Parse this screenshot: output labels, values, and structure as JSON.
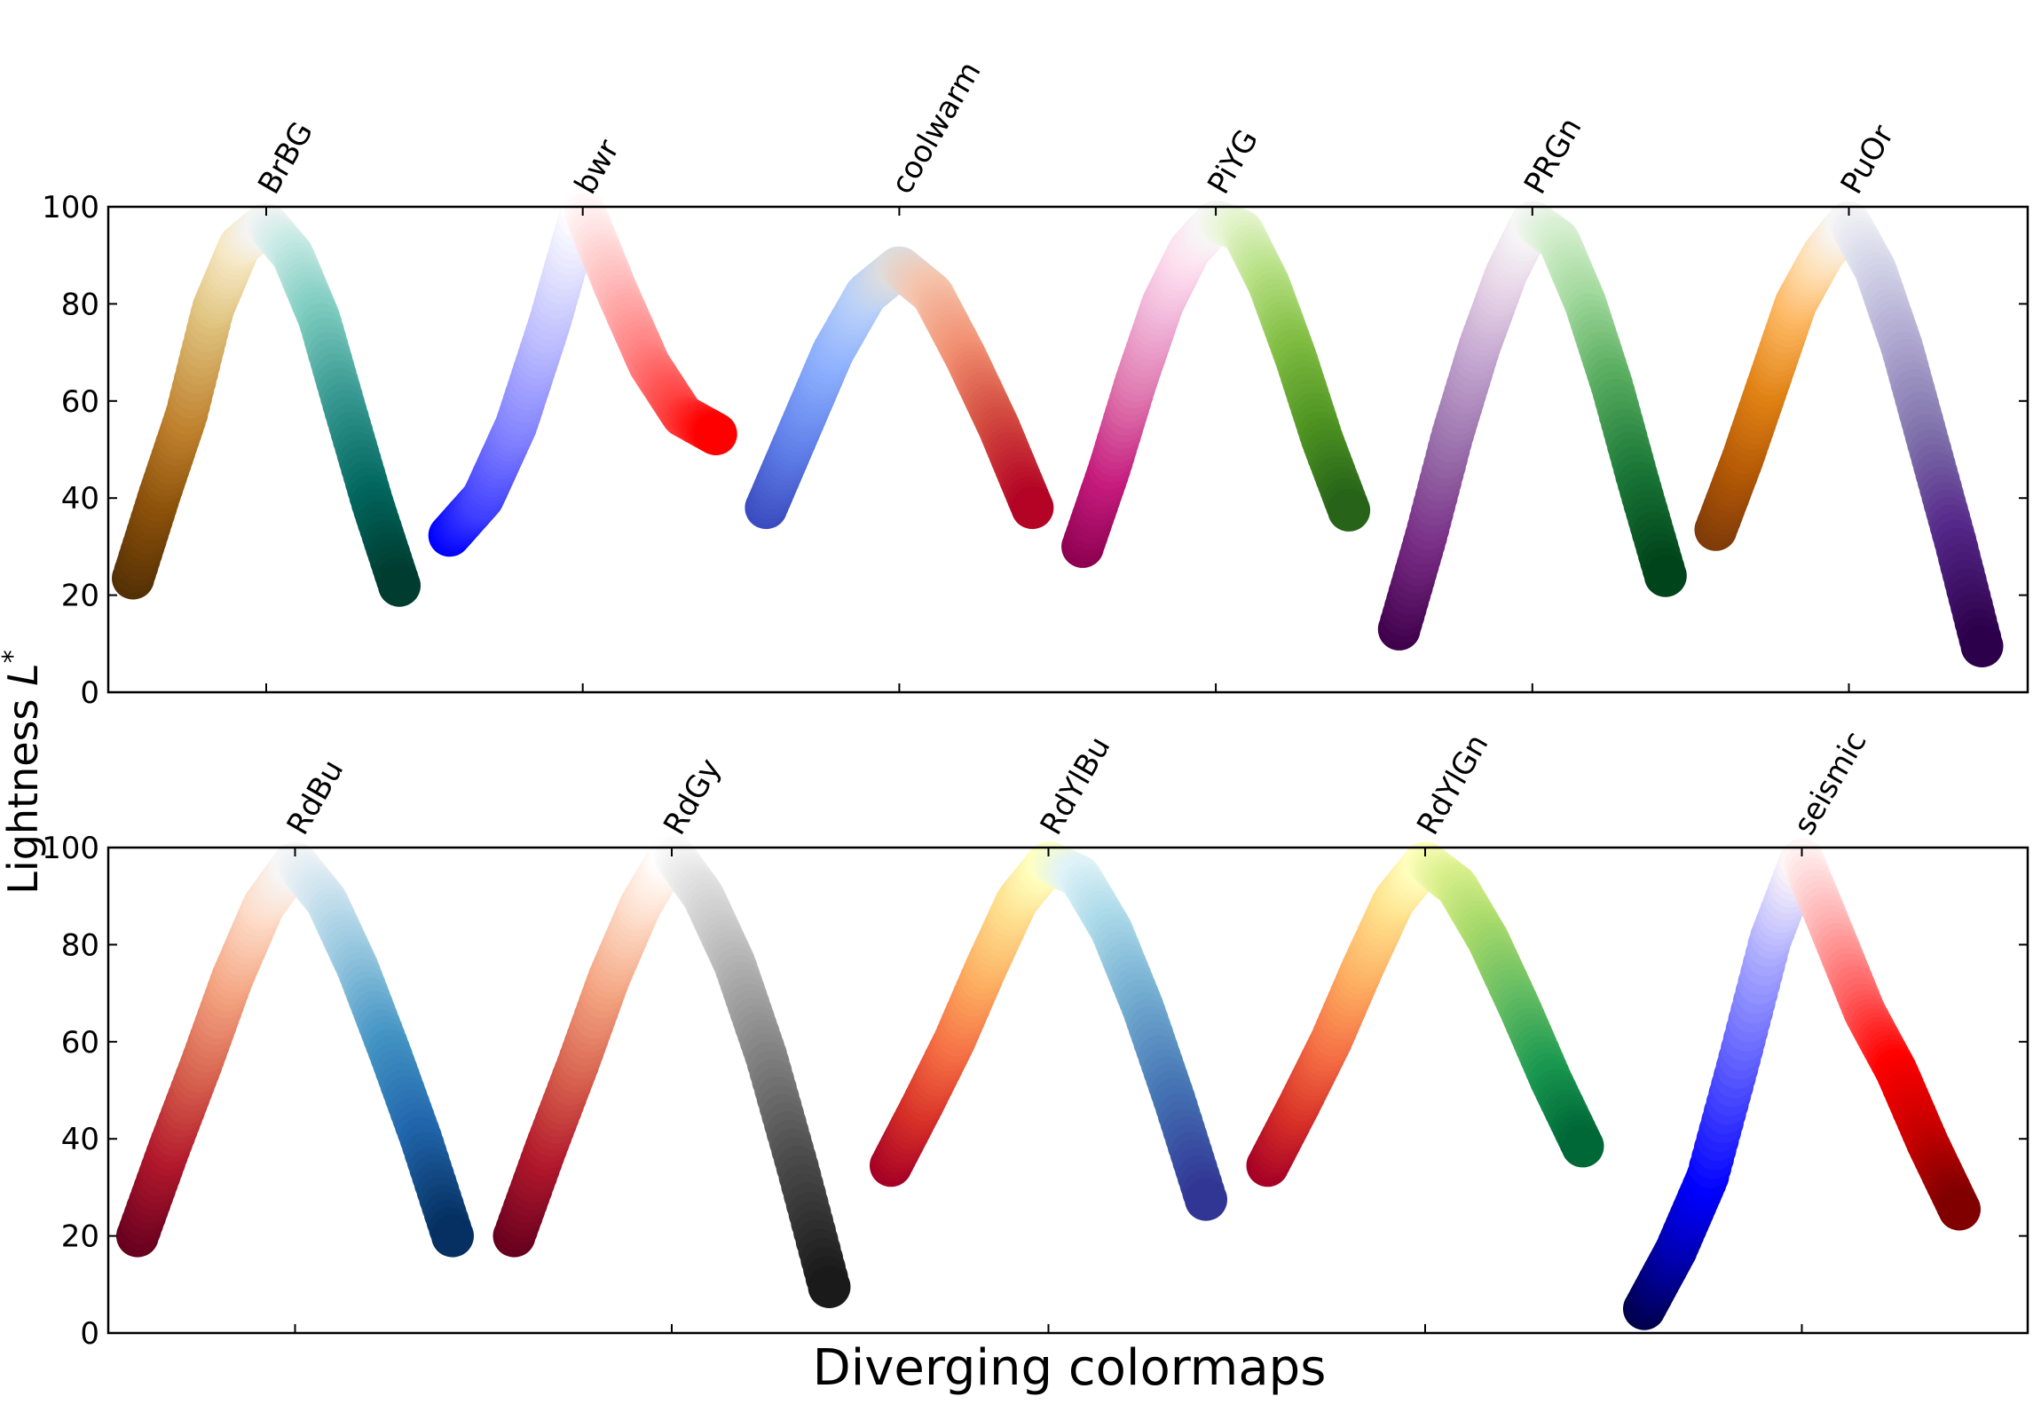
{
  "chart_data": [
    {
      "type": "scatter",
      "ylim": [
        0,
        100
      ],
      "yticks": [
        0,
        20,
        40,
        60,
        80,
        100
      ],
      "series": [
        {
          "name": "BrBG",
          "colors": [
            "#543005",
            "#8c510a",
            "#bf812d",
            "#dfc27d",
            "#f6e8c3",
            "#f5f5f5",
            "#c7eae5",
            "#80cdc1",
            "#35978f",
            "#01665e",
            "#003c30"
          ],
          "lightness": [
            23.5,
            40.8,
            57.1,
            79.0,
            92.0,
            96.5,
            90.0,
            76.8,
            57.6,
            38.8,
            22.0
          ]
        },
        {
          "name": "bwr",
          "colors": [
            "#0000ff",
            "#4040ff",
            "#8080ff",
            "#c0c0ff",
            "#ffffff",
            "#ffc0c0",
            "#ff8080",
            "#ff4040",
            "#ff0000"
          ],
          "lightness": [
            32.3,
            40.0,
            55.0,
            76.0,
            100.0,
            83.0,
            67.5,
            57.0,
            53.2
          ]
        },
        {
          "name": "coolwarm",
          "colors": [
            "#3b4cc0",
            "#6282ea",
            "#8db0fe",
            "#b8d0f9",
            "#dddddd",
            "#f5c4ac",
            "#f29274",
            "#d44e41",
            "#b40426"
          ],
          "lightness": [
            38.0,
            54.0,
            70.0,
            82.0,
            87.6,
            82.0,
            69.0,
            54.5,
            38.0
          ]
        },
        {
          "name": "PiYG",
          "colors": [
            "#8e0152",
            "#c51b7d",
            "#de77ae",
            "#f1b6da",
            "#fde0ef",
            "#f7f7f7",
            "#e6f5d0",
            "#b8e186",
            "#7fbc41",
            "#4d9221",
            "#276419"
          ],
          "lightness": [
            30.0,
            46.0,
            64.0,
            80.0,
            91.0,
            97.0,
            95.0,
            84.0,
            69.0,
            52.0,
            37.5
          ]
        },
        {
          "name": "PRGn",
          "colors": [
            "#40004b",
            "#762a83",
            "#9970ab",
            "#c2a5cf",
            "#e7d4e8",
            "#f7f7f7",
            "#d9f0d3",
            "#a6dba0",
            "#5aae61",
            "#1b7837",
            "#00441b"
          ],
          "lightness": [
            13.0,
            32.0,
            53.0,
            71.0,
            86.0,
            97.0,
            93.0,
            80.0,
            63.0,
            43.0,
            24.0
          ]
        },
        {
          "name": "PuOr",
          "colors": [
            "#7f3b08",
            "#b35806",
            "#e08214",
            "#fdb863",
            "#fee0b6",
            "#f7f7f7",
            "#d8daeb",
            "#b2abd2",
            "#8073ac",
            "#542788",
            "#2d004b"
          ],
          "lightness": [
            33.5,
            48.0,
            64.0,
            80.0,
            90.0,
            97.0,
            87.0,
            71.0,
            51.0,
            31.0,
            9.5
          ]
        }
      ]
    },
    {
      "type": "scatter",
      "ylim": [
        0,
        100
      ],
      "yticks": [
        0,
        20,
        40,
        60,
        80,
        100
      ],
      "series": [
        {
          "name": "RdBu",
          "colors": [
            "#67001f",
            "#b2182b",
            "#d6604d",
            "#f4a582",
            "#fddbc7",
            "#f7f7f7",
            "#d1e5f0",
            "#92c5de",
            "#4393c3",
            "#2166ac",
            "#053061"
          ],
          "lightness": [
            20.0,
            38.0,
            55.0,
            73.0,
            88.0,
            97.0,
            89.0,
            75.0,
            58.0,
            40.0,
            20.0
          ]
        },
        {
          "name": "RdGy",
          "colors": [
            "#67001f",
            "#b2182b",
            "#d6604d",
            "#f4a582",
            "#fddbc7",
            "#ffffff",
            "#e0e0e0",
            "#bababa",
            "#878787",
            "#4d4d4d",
            "#1a1a1a"
          ],
          "lightness": [
            20.0,
            38.0,
            55.0,
            73.0,
            88.0,
            99.0,
            90.0,
            76.0,
            57.0,
            34.0,
            9.5
          ]
        },
        {
          "name": "RdYlBu",
          "colors": [
            "#a50026",
            "#d73027",
            "#f46d43",
            "#fdae61",
            "#fee090",
            "#ffffbf",
            "#e0f3f8",
            "#abd9e9",
            "#74add1",
            "#4575b4",
            "#313695"
          ],
          "lightness": [
            34.5,
            47.0,
            60.0,
            75.0,
            89.0,
            97.0,
            94.0,
            83.0,
            67.0,
            48.0,
            27.5
          ]
        },
        {
          "name": "RdYlGn",
          "colors": [
            "#a50026",
            "#d73027",
            "#f46d43",
            "#fdae61",
            "#fee08b",
            "#ffffbf",
            "#d9ef8b",
            "#a6d96a",
            "#66bd63",
            "#1a9850",
            "#006837"
          ],
          "lightness": [
            34.5,
            47.0,
            60.0,
            75.0,
            89.0,
            97.0,
            92.0,
            81.0,
            67.0,
            52.0,
            38.5
          ]
        },
        {
          "name": "seismic",
          "colors": [
            "#00004c",
            "#0000a6",
            "#0000ff",
            "#5858ff",
            "#b0b0ff",
            "#fff8f8",
            "#ffb0b0",
            "#ff5858",
            "#ff0000",
            "#c80000",
            "#800000"
          ],
          "lightness": [
            5.0,
            17.0,
            32.0,
            56.0,
            81.0,
            98.0,
            82.0,
            66.0,
            54.0,
            39.0,
            25.5
          ]
        }
      ]
    }
  ],
  "axes": {
    "ylabel": "Lightness L*",
    "xlabel": "Diverging colormaps"
  }
}
